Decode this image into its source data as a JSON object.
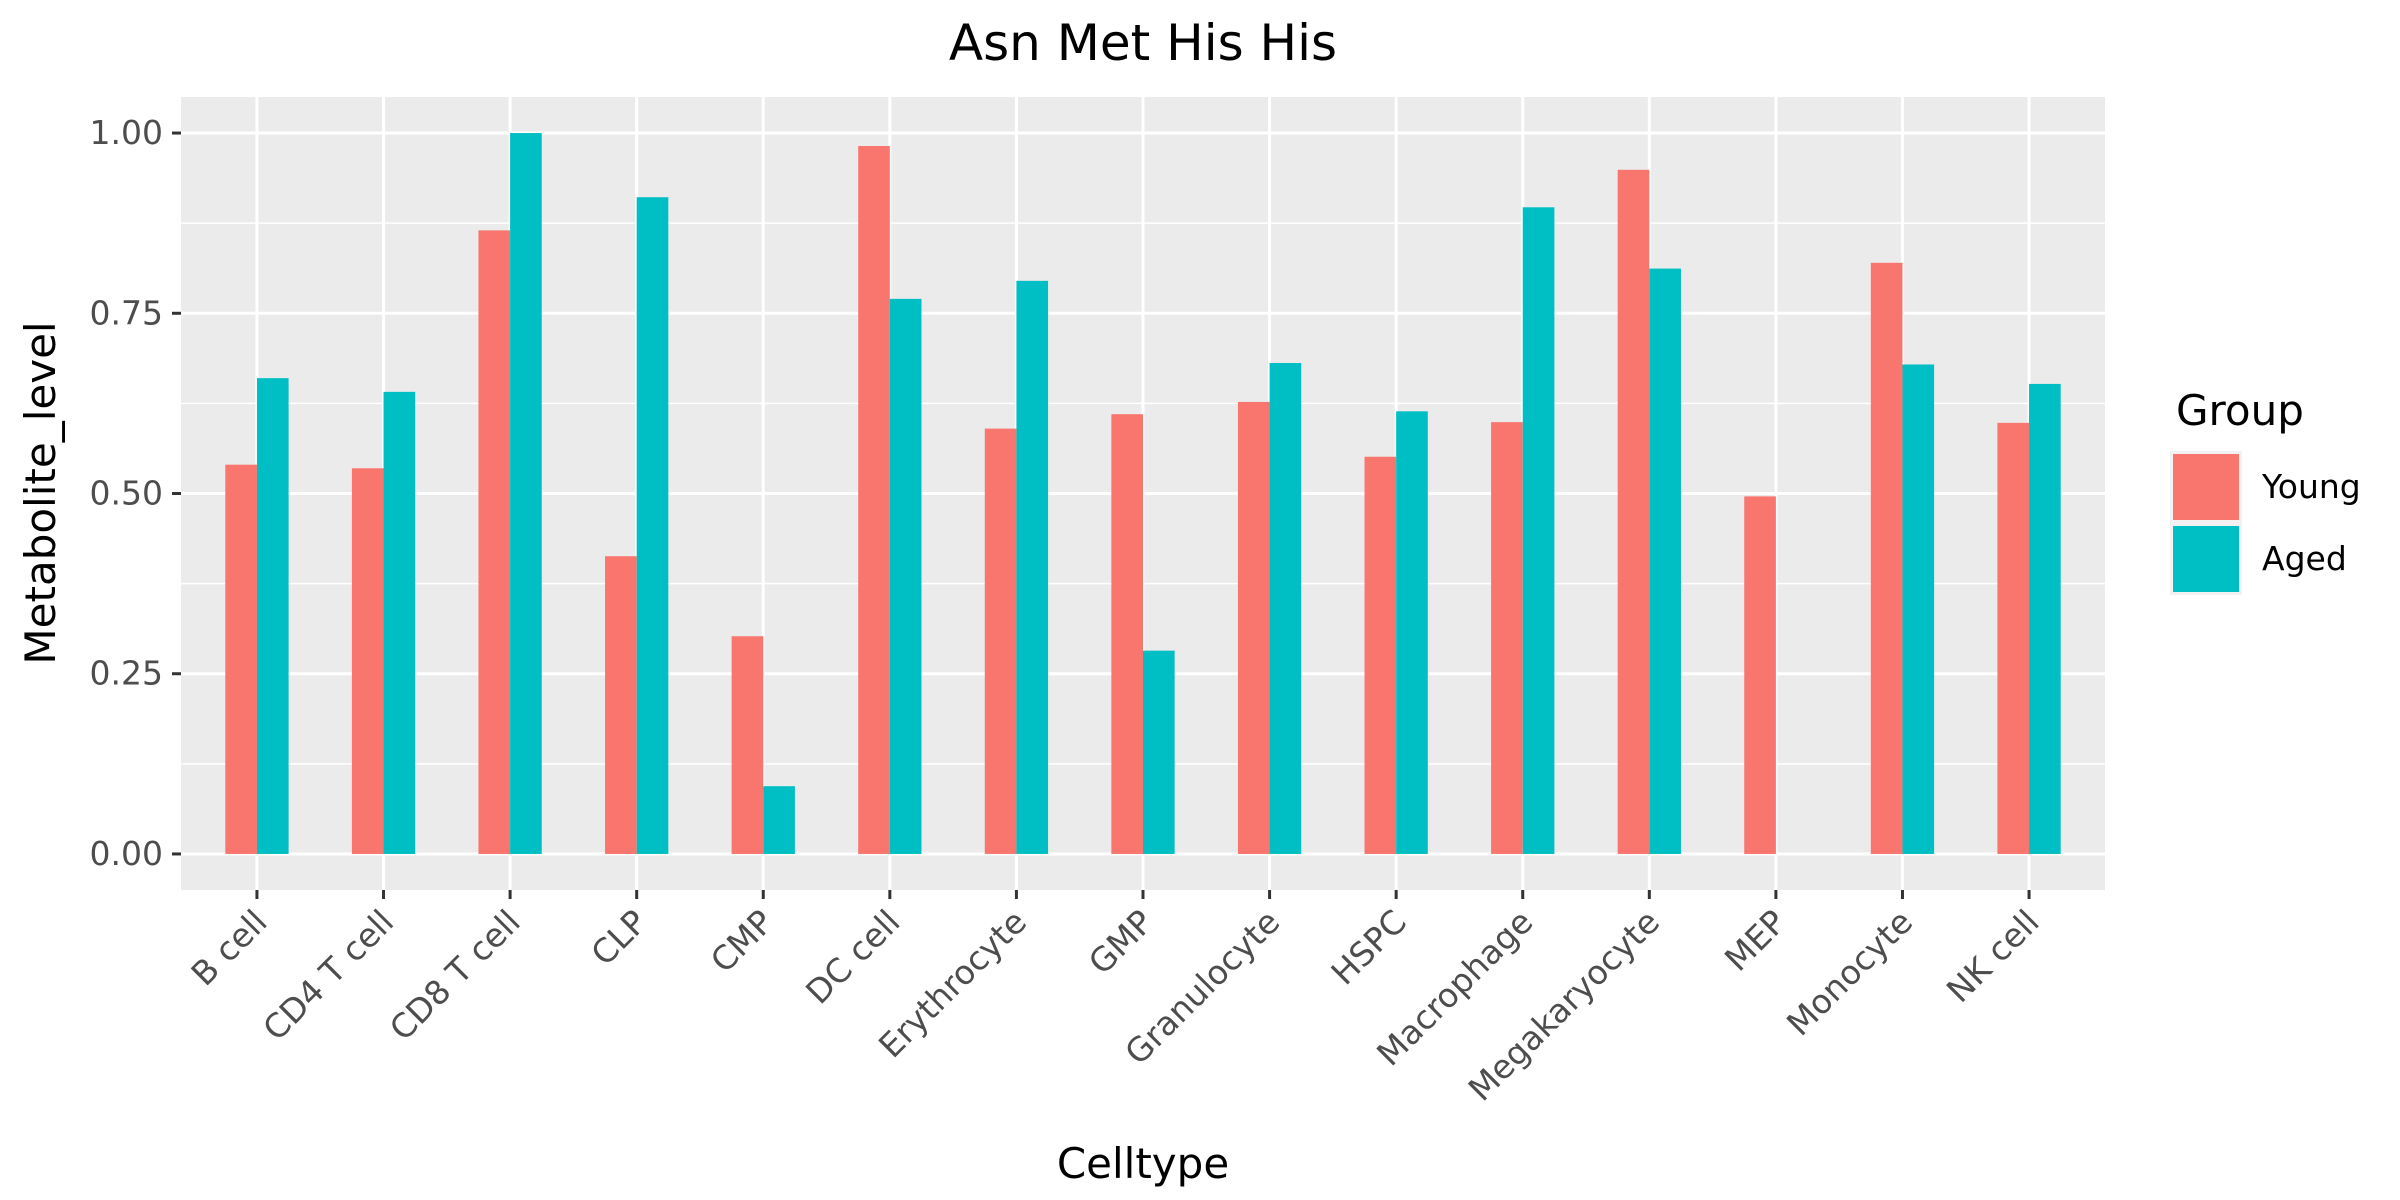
{
  "chart_data": {
    "type": "bar",
    "title": "Asn Met His His",
    "xlabel": "Celltype",
    "ylabel": "Metabolite_level",
    "ylim": [
      -0.05,
      1.05
    ],
    "yticks": [
      "0.00",
      "0.25",
      "0.50",
      "0.75",
      "1.00"
    ],
    "ytick_values": [
      0,
      0.25,
      0.5,
      0.75,
      1.0
    ],
    "grid": true,
    "legend": {
      "title": "Group",
      "position": "right"
    },
    "categories": [
      "B cell",
      "CD4 T cell",
      "CD8 T cell",
      "CLP",
      "CMP",
      "DC cell",
      "Erythrocyte",
      "GMP",
      "Granulocyte",
      "HSPC",
      "Macrophage",
      "Megakaryocyte",
      "MEP",
      "Monocyte",
      "NK cell"
    ],
    "series": [
      {
        "name": "Young",
        "color": "#F8766D",
        "values": [
          0.54,
          0.535,
          0.865,
          0.413,
          0.302,
          0.982,
          0.59,
          0.61,
          0.627,
          0.551,
          0.599,
          0.949,
          0.496,
          0.82,
          0.598
        ]
      },
      {
        "name": "Aged",
        "color": "#00BFC4",
        "values": [
          0.66,
          0.641,
          1.0,
          0.911,
          0.094,
          0.77,
          0.795,
          0.282,
          0.681,
          0.614,
          0.897,
          0.812,
          null,
          0.679,
          0.652
        ]
      }
    ]
  }
}
